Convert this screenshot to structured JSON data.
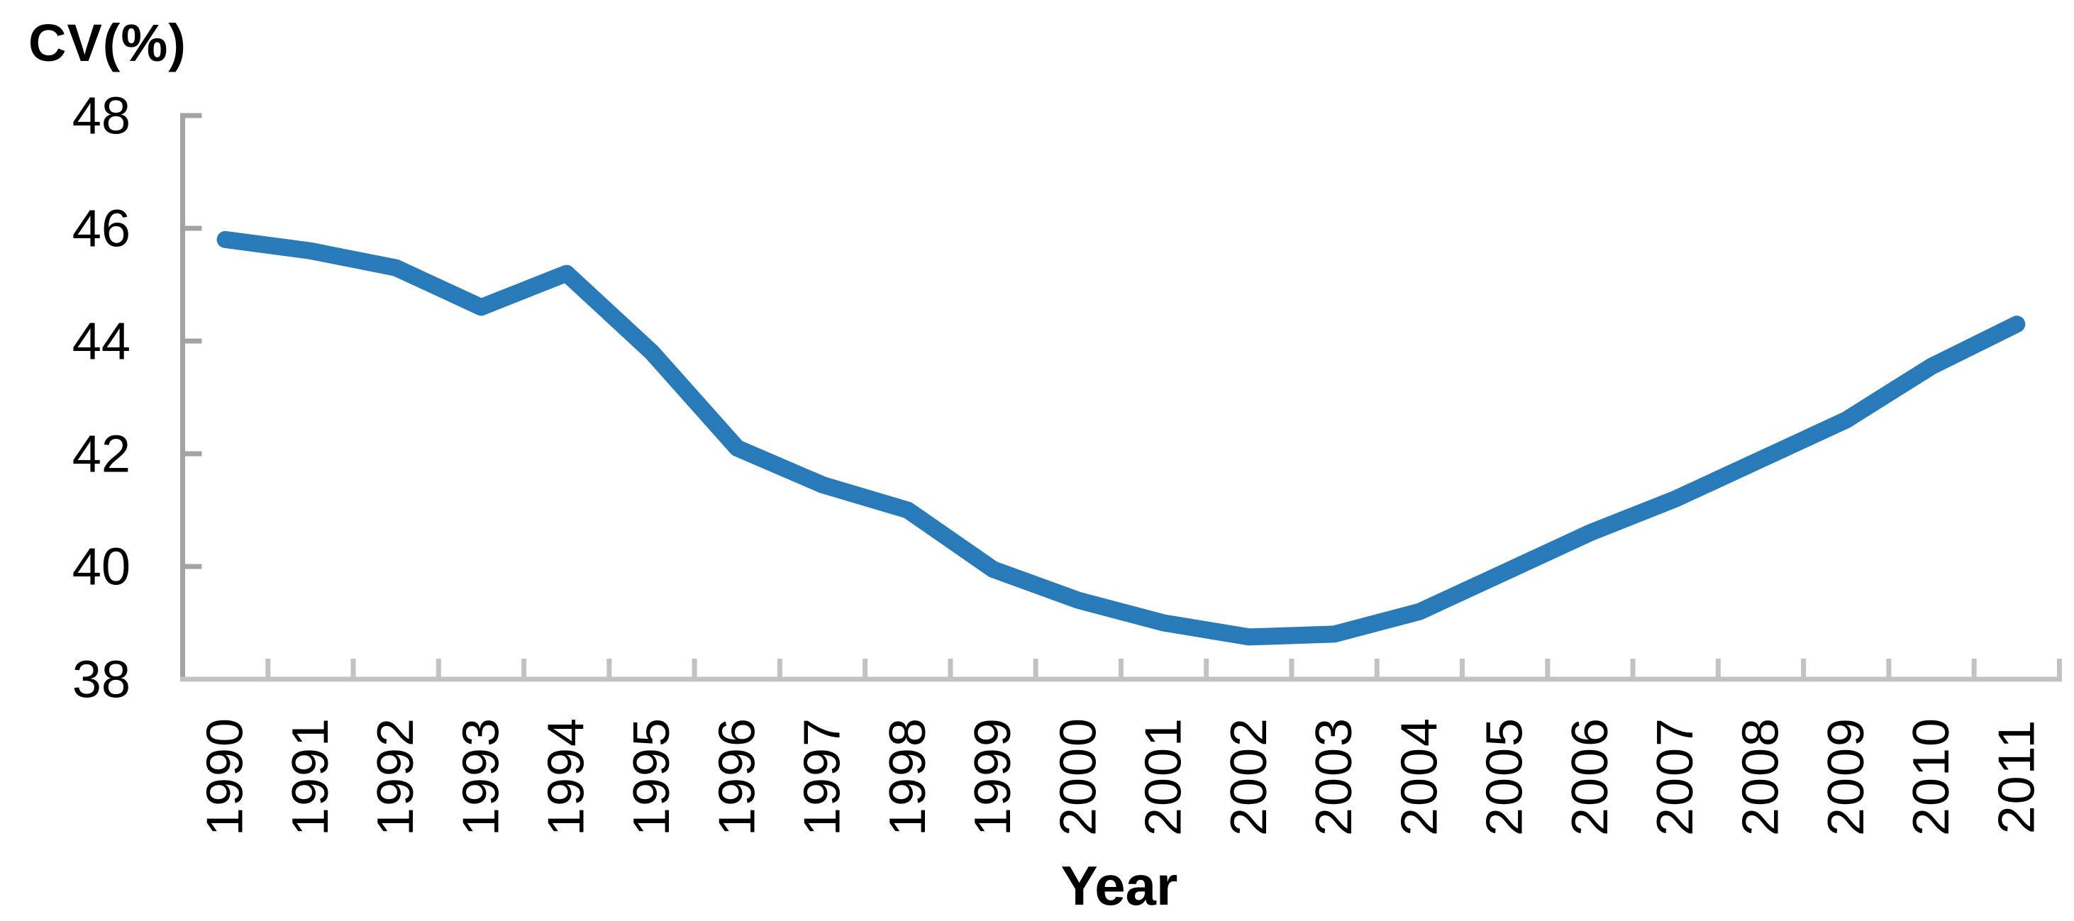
{
  "chart_data": {
    "type": "line",
    "title": "",
    "ylabel": "CV(%)",
    "xlabel": "Year",
    "categories": [
      "1990",
      "1991",
      "1992",
      "1993",
      "1994",
      "1995",
      "1996",
      "1997",
      "1998",
      "1999",
      "2000",
      "2001",
      "2002",
      "2003",
      "2004",
      "2005",
      "2006",
      "2007",
      "2008",
      "2009",
      "2010",
      "2011"
    ],
    "values": [
      45.8,
      45.6,
      45.3,
      44.6,
      45.2,
      43.8,
      42.1,
      41.45,
      41.0,
      39.95,
      39.4,
      39.0,
      38.75,
      38.8,
      39.2,
      39.9,
      40.6,
      41.2,
      41.9,
      42.6,
      43.55,
      44.3
    ],
    "ylim": [
      38,
      48
    ],
    "yticks": [
      38,
      40,
      42,
      44,
      46,
      48
    ],
    "grid": false,
    "legend": false,
    "line_color": "#287AB8",
    "y_axis_color": "#A3A3A3",
    "x_axis_color": "#C2C2C2",
    "tick_style": "inside",
    "x_label_rotation": -90
  }
}
